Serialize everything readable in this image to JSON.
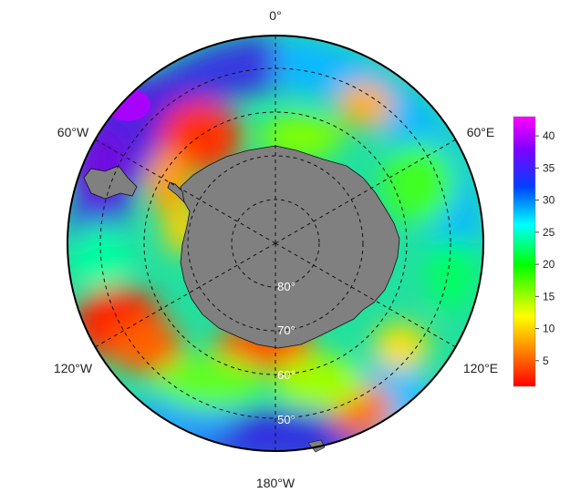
{
  "map": {
    "projection": "south-polar-stereographic",
    "longitude_labels": {
      "top": "0°",
      "upper_left": "60°W",
      "upper_right": "60°E",
      "lower_left": "120°W",
      "lower_right": "120°E",
      "bottom": "180°W"
    },
    "latitude_labels": [
      "80°",
      "70°",
      "60°",
      "50°"
    ],
    "land_color": "#808080",
    "grid_style": "dashed"
  },
  "colorbar": {
    "ticks": [
      "40",
      "35",
      "30",
      "25",
      "20",
      "15",
      "10",
      "5"
    ],
    "min": 1,
    "max": 43,
    "colors": [
      "#ff0000",
      "#ff8c00",
      "#ffff00",
      "#00ff00",
      "#00ffff",
      "#0000ff",
      "#8000ff",
      "#ff00ff"
    ]
  }
}
